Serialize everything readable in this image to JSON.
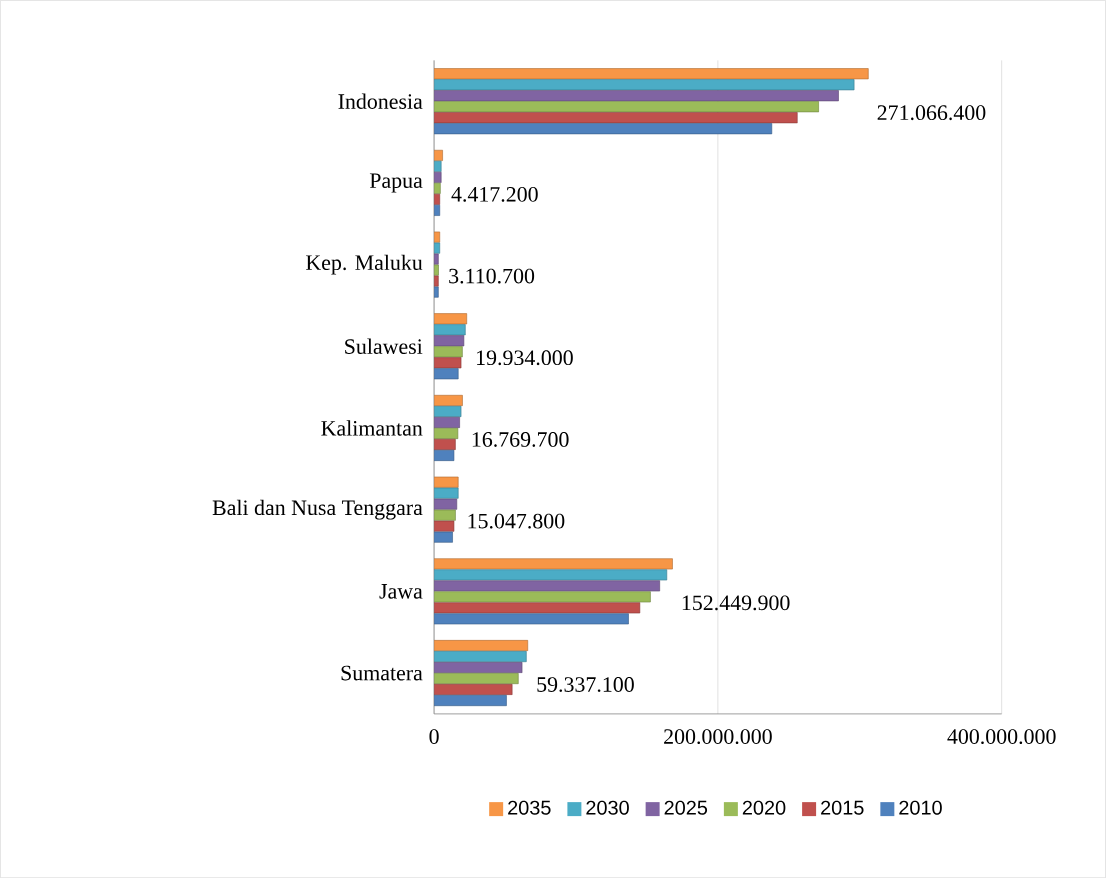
{
  "chart_data": {
    "type": "bar",
    "orientation": "horizontal",
    "categories": [
      "Indonesia",
      "Papua",
      "Kep. Maluku",
      "Sulawesi",
      "Kalimantan",
      "Bali dan Nusa Tenggara",
      "Jawa",
      "Sumatera"
    ],
    "series": [
      {
        "name": "2035",
        "color": "#f79646",
        "values": [
          306000000,
          6000000,
          4000000,
          23000000,
          20000000,
          17000000,
          168000000,
          66000000
        ]
      },
      {
        "name": "2030",
        "color": "#4bacc6",
        "values": [
          296000000,
          5000000,
          4000000,
          22000000,
          19000000,
          17000000,
          164000000,
          65000000
        ]
      },
      {
        "name": "2025",
        "color": "#8064a2",
        "values": [
          285000000,
          5000000,
          3000000,
          21000000,
          18000000,
          16000000,
          159000000,
          62000000
        ]
      },
      {
        "name": "2020",
        "color": "#9bbb59",
        "values": [
          271066400,
          4417200,
          3110700,
          19934000,
          16769700,
          15047800,
          152449900,
          59337100
        ],
        "value_labels": [
          "271.066.400",
          "4.417.200",
          "3.110.700",
          "19.934.000",
          "16.769.700",
          "15.047.800",
          "152.449.900",
          "59.337.100"
        ]
      },
      {
        "name": "2015",
        "color": "#c0504d",
        "values": [
          256000000,
          4000000,
          3000000,
          19000000,
          15000000,
          14000000,
          145000000,
          55000000
        ]
      },
      {
        "name": "2010",
        "color": "#4f81bd",
        "values": [
          238000000,
          4000000,
          3000000,
          17000000,
          14000000,
          13000000,
          137000000,
          51000000
        ]
      }
    ],
    "xlim": [
      0,
      400000000
    ],
    "xticks": [
      0,
      {
        "value": 200000000,
        "label": "200.000.000"
      },
      {
        "value": 400000000,
        "label": "400.000.000"
      }
    ],
    "grid": "x",
    "legend": "bottom"
  }
}
